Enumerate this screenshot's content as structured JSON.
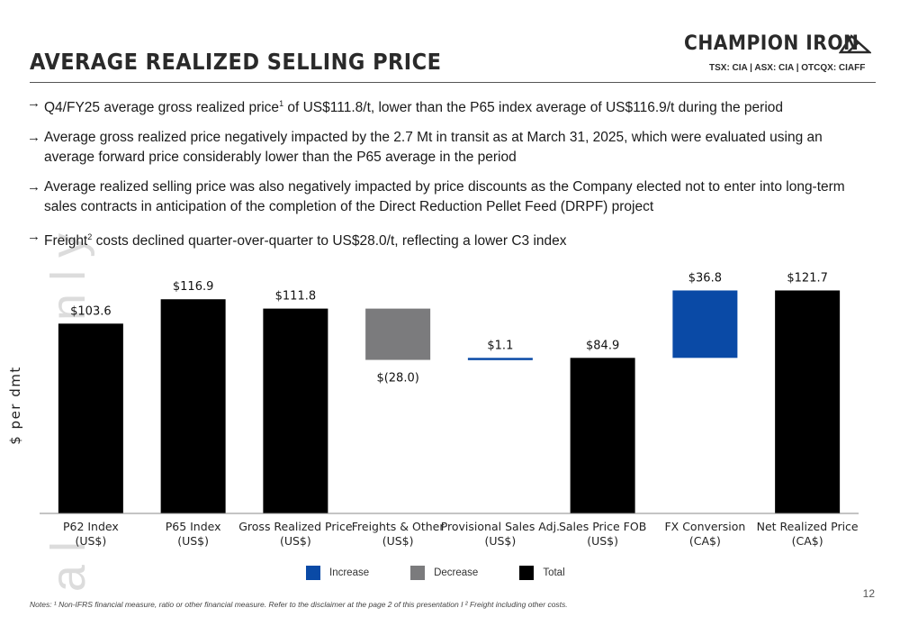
{
  "header": {
    "title": "AVERAGE REALIZED SELLING PRICE",
    "brand": "CHAMPION IRON",
    "tickers": "TSX: CIA  | ASX: CIA | OTCQX: CIAFF"
  },
  "bullets": [
    {
      "before": "Q4/FY25 average gross realized price",
      "sup": "1",
      "after": " of US$111.8/t, lower than the P65 index average of US$116.9/t during the period"
    },
    {
      "before": "Average gross realized price negatively impacted by the 2.7 Mt in transit as at March 31, 2025, which were evaluated using an average forward price considerably lower than the P65 average in the period",
      "sup": "",
      "after": ""
    },
    {
      "before": "Average realized selling price was also negatively impacted by price discounts as the Company elected not to enter into long-term sales contracts in anticipation of the completion of the Direct Reduction Pellet Feed (DRPF) project",
      "sup": "",
      "after": ""
    },
    {
      "before": "Freight",
      "sup": "2",
      "after": " costs declined quarter-over-quarter to US$28.0/t, reflecting a lower C3 index"
    }
  ],
  "watermark": "al use only",
  "chart_data": {
    "type": "bar",
    "subtype": "waterfall",
    "ylabel": "$ per dmt",
    "categories": [
      {
        "line1": "P62 Index",
        "line2": "(US$)"
      },
      {
        "line1": "P65 Index",
        "line2": "(US$)"
      },
      {
        "line1": "Gross Realized Price",
        "line2": "(US$)"
      },
      {
        "line1": "Freights & Other",
        "line2": "(US$)"
      },
      {
        "line1": "Provisional Sales Adj.",
        "line2": "(US$)"
      },
      {
        "line1": "Sales Price FOB",
        "line2": "(US$)"
      },
      {
        "line1": "FX Conversion",
        "line2": "(CA$)"
      },
      {
        "line1": "Net Realized Price",
        "line2": "(CA$)"
      }
    ],
    "bars": [
      {
        "kind": "total",
        "start": 0,
        "end": 103.6,
        "label": "$103.6"
      },
      {
        "kind": "total",
        "start": 0,
        "end": 116.9,
        "label": "$116.9"
      },
      {
        "kind": "total",
        "start": 0,
        "end": 111.8,
        "label": "$111.8"
      },
      {
        "kind": "decrease",
        "start": 111.8,
        "end": 83.8,
        "label": "$(28.0)"
      },
      {
        "kind": "increase",
        "start": 83.8,
        "end": 84.9,
        "label": "$1.1"
      },
      {
        "kind": "total",
        "start": 0,
        "end": 84.9,
        "label": "$84.9"
      },
      {
        "kind": "increase",
        "start": 84.9,
        "end": 121.7,
        "label": "$36.8"
      },
      {
        "kind": "total",
        "start": 0,
        "end": 121.7,
        "label": "$121.7"
      }
    ],
    "ylim": [
      0,
      130
    ],
    "colors": {
      "increase": "#0a4aa6",
      "decrease": "#7b7b7d",
      "total": "#000000"
    },
    "legend": [
      "Increase",
      "Decrease",
      "Total"
    ],
    "legend_position": "bottom"
  },
  "footer": {
    "notes": "Notes: ¹ Non-IFRS financial measure, ratio or other financial measure. Refer to the disclaimer at the page 2 of this presentation I ² Freight including other costs.",
    "page": "12"
  }
}
